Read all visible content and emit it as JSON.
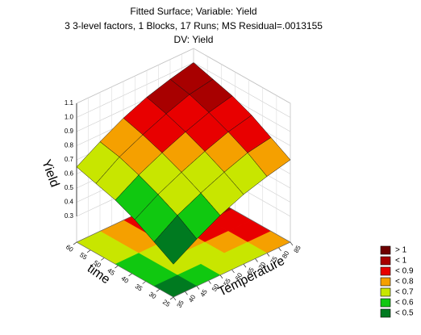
{
  "chart_data": {
    "type": "surface",
    "title": "Fitted Surface; Variable: Yield",
    "subtitle": "3 3-level factors, 1 Blocks, 17 Runs; MS Residual=.0013155",
    "dv_label": "DV: Yield",
    "xlabel": "Temperature",
    "ylabel": "time",
    "zlabel": "Yield",
    "xlim": [
      35,
      85
    ],
    "ylim": [
      25,
      60
    ],
    "zlim": [
      0.3,
      1.1
    ],
    "xticks": [
      35,
      40,
      45,
      50,
      55,
      60,
      65,
      70,
      75,
      80,
      85
    ],
    "yticks": [
      25,
      30,
      35,
      40,
      45,
      50,
      55,
      60
    ],
    "zticks": [
      0.3,
      0.4,
      0.5,
      0.6,
      0.7,
      0.8,
      0.9,
      {
        "value": 1,
        "label": "1.0"
      },
      1.1
    ],
    "x": [
      35,
      45,
      55,
      65,
      75,
      85
    ],
    "y": [
      25,
      32,
      39,
      46,
      53,
      60
    ],
    "z": [
      [
        0.35,
        0.45,
        0.54,
        0.61,
        0.66,
        0.7
      ],
      [
        0.43,
        0.54,
        0.62,
        0.69,
        0.75,
        0.78
      ],
      [
        0.51,
        0.61,
        0.69,
        0.76,
        0.82,
        0.86
      ],
      [
        0.57,
        0.67,
        0.75,
        0.82,
        0.88,
        0.92
      ],
      [
        0.61,
        0.72,
        0.8,
        0.87,
        0.93,
        0.96
      ],
      [
        0.65,
        0.75,
        0.84,
        0.91,
        0.96,
        1.0
      ]
    ],
    "legend": [
      {
        "label": "> 1",
        "value": 1,
        "color": "#6e0000"
      },
      {
        "label": "< 1",
        "value": 1,
        "color": "#a80000"
      },
      {
        "label": "< 0.9",
        "value": 0.9,
        "color": "#e80000"
      },
      {
        "label": "< 0.8",
        "value": 0.8,
        "color": "#f5a000"
      },
      {
        "label": "< 0.7",
        "value": 0.7,
        "color": "#c8e600"
      },
      {
        "label": "< 0.6",
        "value": 0.6,
        "color": "#10c810"
      },
      {
        "label": "< 0.5",
        "value": 0.5,
        "color": "#007a20"
      }
    ]
  }
}
